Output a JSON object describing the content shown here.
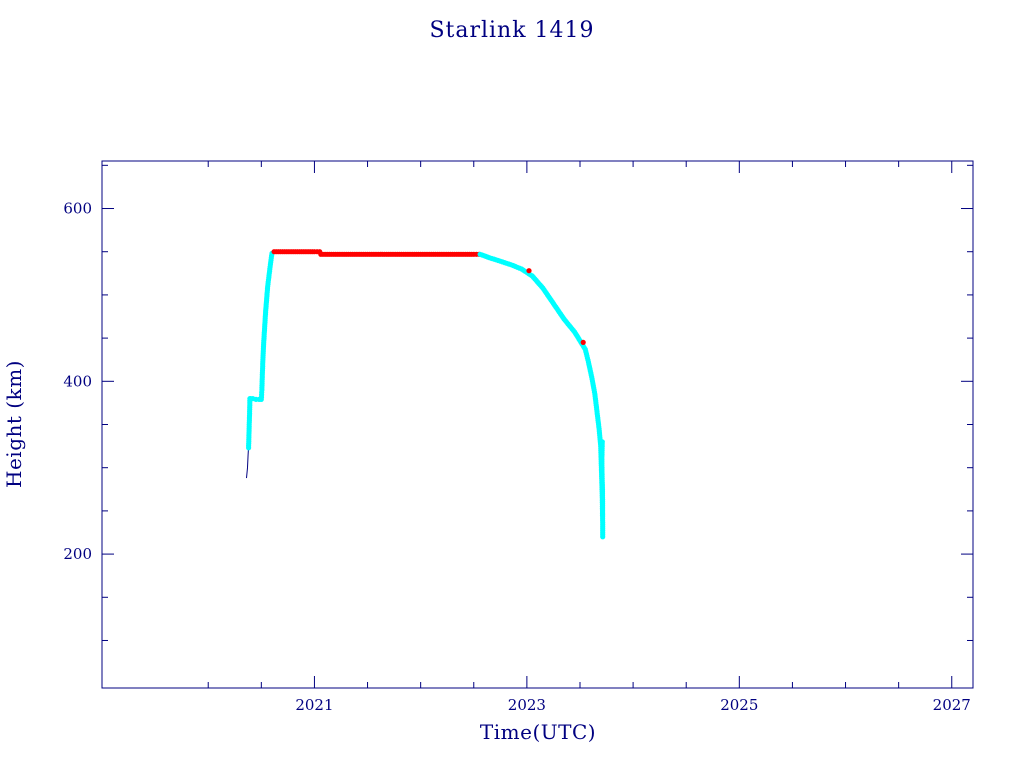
{
  "chart_data": {
    "type": "scatter",
    "title": "Starlink 1419",
    "xlabel": "Time(UTC)",
    "ylabel": "Height (km)",
    "xlim": [
      2019.0,
      2027.2
    ],
    "ylim": [
      45,
      655
    ],
    "x_major_ticks": [
      2021,
      2023,
      2025,
      2027
    ],
    "x_tick_labels": [
      "2021",
      "2023",
      "2025",
      "2027"
    ],
    "x_minor_ticks": [
      2020,
      2020.5,
      2021.5,
      2022,
      2022.5,
      2023.5,
      2024,
      2024.5,
      2025.5,
      2026,
      2026.5
    ],
    "y_major_ticks": [
      200,
      400,
      600
    ],
    "y_tick_labels": [
      "200",
      "400",
      "600"
    ],
    "y_minor_ticks": [
      100,
      150,
      250,
      300,
      350,
      450,
      500,
      550,
      650
    ],
    "grid": false,
    "legend": "none",
    "colors": {
      "frame": "#000080",
      "text": "#000080",
      "track_line": "#000080",
      "orbit_raising": "#00ffff",
      "operational": "#ff0000",
      "decay": "#00ffff"
    },
    "series": [
      {
        "color": "#00ffff",
        "x": [
          2020.38,
          2020.385,
          2020.39,
          2020.392,
          2020.4,
          2020.42,
          2020.45,
          2020.48,
          2020.5,
          2020.505,
          2020.51,
          2020.52,
          2020.54,
          2020.56,
          2020.58,
          2020.6
        ],
        "y": [
          323,
          345,
          365,
          380,
          380,
          380,
          379,
          379,
          379,
          390,
          410,
          440,
          480,
          510,
          530,
          548
        ]
      },
      {
        "color": "#ff0000",
        "x": [
          2020.62,
          2020.7,
          2020.8,
          2020.9,
          2021.0,
          2021.05,
          2021.06,
          2021.1,
          2021.3,
          2021.5,
          2021.7,
          2021.9,
          2022.1,
          2022.3,
          2022.5,
          2022.55
        ],
        "y": [
          550,
          550,
          550,
          550,
          550,
          550,
          547,
          547,
          547,
          547,
          547,
          547,
          547,
          547,
          547,
          547
        ]
      },
      {
        "color": "#00ffff",
        "x": [
          2022.56,
          2022.65,
          2022.75,
          2022.85,
          2022.95,
          2023.05,
          2023.15,
          2023.25,
          2023.35,
          2023.45,
          2023.55,
          2023.58,
          2023.61,
          2023.64,
          2023.66,
          2023.68,
          2023.695,
          2023.7,
          2023.705,
          2023.71,
          2023.712
        ],
        "y": [
          547,
          543,
          539,
          535,
          530,
          522,
          508,
          490,
          472,
          457,
          437,
          422,
          405,
          385,
          365,
          345,
          325,
          305,
          285,
          265,
          245
        ]
      },
      {
        "color": "#00ffff",
        "x": [
          2023.714,
          2023.712,
          2023.708,
          2023.706,
          2023.71
        ],
        "y": [
          220,
          275,
          290,
          310,
          330
        ]
      },
      {
        "color": "#ff0000",
        "x": [
          2023.02,
          2023.53
        ],
        "y": [
          528,
          445
        ]
      }
    ],
    "track_line": {
      "color": "#000080",
      "x": [
        2020.36,
        2020.37,
        2020.375,
        2020.38,
        2020.39,
        2020.4,
        2020.5,
        2020.51,
        2020.55,
        2020.6,
        2020.62,
        2021.05,
        2021.06,
        2022.55,
        2022.75,
        2022.95,
        2023.15,
        2023.35,
        2023.55,
        2023.64,
        2023.68,
        2023.7,
        2023.71,
        2023.714
      ],
      "y": [
        288,
        300,
        315,
        325,
        380,
        380,
        379,
        390,
        470,
        548,
        550,
        550,
        547,
        547,
        539,
        530,
        508,
        472,
        437,
        385,
        345,
        305,
        265,
        220
      ]
    }
  }
}
